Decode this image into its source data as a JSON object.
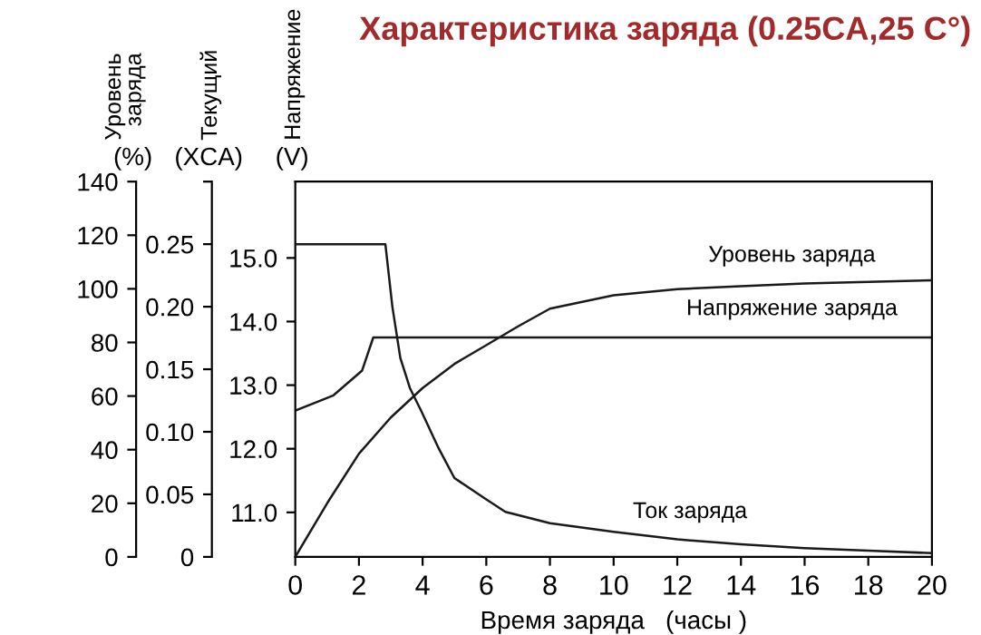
{
  "chart_data": {
    "type": "line",
    "title": "Характеристика заряда (0.25CA,25 C°)",
    "xlabel": "Время заряда   (часы )",
    "ylabel": "Уровень\nзаряда",
    "y2label": "Текущий",
    "y3label": "Напряжение",
    "annotations": [
      "(%)",
      "(XCA)",
      "(V)"
    ],
    "xlim": [
      0,
      20
    ],
    "xticks": [
      0,
      2,
      4,
      6,
      8,
      10,
      12,
      14,
      16,
      18,
      20
    ],
    "ylim": [
      0,
      140
    ],
    "yticks": [
      0,
      20,
      40,
      60,
      80,
      100,
      120,
      140
    ],
    "y2lim": [
      0,
      0.3
    ],
    "y2ticks": [
      0,
      0.05,
      {
        "value": 0.1,
        "label": "0.10"
      },
      0.15,
      {
        "value": 0.2,
        "label": "0.20"
      },
      0.25,
      {
        "value": 0.3,
        "label": null
      }
    ],
    "y3lim": [
      10.3,
      16.2
    ],
    "y3ticks": [
      {
        "value": 11,
        "label": "11.0"
      },
      {
        "value": 12,
        "label": "12.0"
      },
      {
        "value": 13,
        "label": "13.0"
      },
      {
        "value": 14,
        "label": "14.0"
      },
      {
        "value": 15,
        "label": "15.0"
      }
    ],
    "grid": false,
    "legend": false,
    "marker": "none",
    "line_style": "solid",
    "series": [
      {
        "name": "Уровень заряда",
        "color": "#1a1a1a",
        "x": [
          0,
          1,
          2,
          3,
          4,
          5,
          6,
          7,
          8,
          10,
          12,
          14,
          16,
          18,
          20
        ],
        "values": [
          0,
          20,
          38.5,
          52,
          63,
          72,
          79,
          86,
          92.6,
          97.6,
          99.9,
          101,
          102,
          102.6,
          103.2
        ]
      },
      {
        "name": "Напряжение заряда",
        "color": "#1a1a1a",
        "axis": "y3",
        "x": [
          0,
          1.2,
          2.1,
          2.45,
          20
        ],
        "values": [
          12.6,
          12.84,
          13.23,
          13.75,
          13.75
        ]
      },
      {
        "name": "Ток заряда",
        "color": "#1a1a1a",
        "axis": "y2",
        "x": [
          0,
          2.83,
          3.05,
          3.3,
          3.6,
          3.97,
          4.5,
          5,
          6,
          6.6,
          8,
          10,
          12,
          14,
          16,
          18,
          20
        ],
        "values": [
          0.25,
          0.25,
          0.2,
          0.159,
          0.135,
          0.116,
          0.087,
          0.063,
          0.046,
          0.036,
          0.027,
          0.02,
          0.014,
          0.01,
          0.007,
          0.005,
          0.003
        ]
      }
    ]
  }
}
